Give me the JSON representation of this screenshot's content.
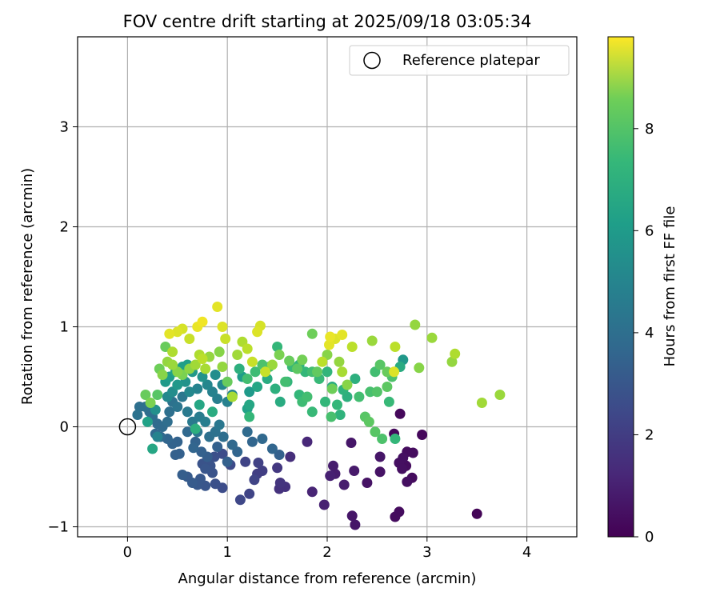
{
  "chart_data": {
    "type": "scatter",
    "title": "FOV centre drift starting at 2025/09/18 03:05:34",
    "xlabel": "Angular distance from reference (arcmin)",
    "ylabel": "Rotation from reference (arcmin)",
    "xlim": [
      -0.5,
      4.5
    ],
    "ylim": [
      -1.1,
      3.9
    ],
    "xticks": [
      0,
      1,
      2,
      3,
      4
    ],
    "xtick_labels": [
      "0",
      "1",
      "2",
      "3",
      "4"
    ],
    "yticks": [
      -1,
      0,
      1,
      2,
      3
    ],
    "ytick_labels": [
      "−1",
      "0",
      "1",
      "2",
      "3"
    ],
    "grid": true,
    "legend": {
      "placement": "top-right",
      "entries": [
        "Reference platepar"
      ]
    },
    "reference_point": {
      "x": 0,
      "y": 0,
      "marker": "open-circle"
    },
    "colorbar": {
      "label": "Hours from first FF file",
      "colormap": "viridis",
      "range": [
        0,
        9.8
      ],
      "ticks": [
        0,
        2,
        4,
        6,
        8
      ],
      "tick_labels": [
        "0",
        "2",
        "4",
        "6",
        "8"
      ]
    },
    "series": [
      {
        "points": [
          [
            2.73,
            0.13,
            0.2
          ],
          [
            2.67,
            -0.07,
            0.2
          ],
          [
            2.95,
            -0.08,
            0.2
          ],
          [
            2.8,
            -0.25,
            0.3
          ],
          [
            2.86,
            -0.26,
            0.3
          ],
          [
            2.76,
            -0.31,
            0.4
          ],
          [
            2.72,
            -0.36,
            0.4
          ],
          [
            2.79,
            -0.39,
            0.3
          ],
          [
            2.75,
            -0.42,
            0.4
          ],
          [
            2.85,
            -0.51,
            0.3
          ],
          [
            2.8,
            -0.55,
            0.4
          ],
          [
            2.72,
            -0.85,
            0.3
          ],
          [
            2.68,
            -0.9,
            0.3
          ],
          [
            3.5,
            -0.87,
            0.1
          ],
          [
            2.53,
            -0.45,
            0.5
          ],
          [
            2.53,
            -0.3,
            0.6
          ],
          [
            2.4,
            -0.56,
            0.5
          ],
          [
            2.24,
            -0.16,
            0.6
          ],
          [
            2.25,
            -0.89,
            0.6
          ],
          [
            2.28,
            -0.98,
            0.6
          ],
          [
            2.27,
            -0.44,
            0.7
          ],
          [
            2.17,
            -0.58,
            0.8
          ],
          [
            2.08,
            -0.47,
            0.8
          ],
          [
            2.03,
            -0.49,
            0.9
          ],
          [
            2.06,
            -0.39,
            0.8
          ],
          [
            1.97,
            -0.78,
            0.9
          ],
          [
            1.85,
            -0.65,
            1.0
          ],
          [
            1.8,
            -0.15,
            1.1
          ],
          [
            1.63,
            -0.3,
            1.3
          ],
          [
            1.58,
            -0.6,
            1.4
          ],
          [
            1.52,
            -0.62,
            1.4
          ],
          [
            1.53,
            -0.56,
            1.5
          ],
          [
            1.5,
            -0.41,
            1.6
          ],
          [
            1.35,
            -0.44,
            1.8
          ],
          [
            1.3,
            -0.47,
            1.8
          ],
          [
            1.31,
            -0.36,
            1.9
          ],
          [
            1.27,
            -0.53,
            2.0
          ],
          [
            1.18,
            -0.35,
            2.0
          ],
          [
            1.22,
            -0.67,
            2.0
          ],
          [
            1.13,
            -0.73,
            2.1
          ],
          [
            1.03,
            -0.38,
            2.2
          ],
          [
            0.95,
            -0.27,
            2.3
          ],
          [
            0.95,
            -0.61,
            2.3
          ],
          [
            0.88,
            -0.57,
            2.4
          ],
          [
            0.85,
            -0.46,
            2.5
          ],
          [
            0.87,
            -0.3,
            2.4
          ],
          [
            0.83,
            -0.39,
            2.5
          ],
          [
            0.78,
            -0.42,
            2.6
          ],
          [
            0.75,
            -0.37,
            2.5
          ],
          [
            0.78,
            -0.59,
            2.6
          ],
          [
            0.73,
            -0.52,
            2.7
          ],
          [
            0.7,
            -0.58,
            2.7
          ],
          [
            0.65,
            -0.56,
            2.8
          ],
          [
            0.6,
            -0.5,
            2.8
          ],
          [
            0.55,
            -0.48,
            2.9
          ],
          [
            0.52,
            -0.27,
            3.0
          ],
          [
            0.48,
            -0.28,
            3.0
          ],
          [
            0.5,
            -0.15,
            3.1
          ],
          [
            0.45,
            -0.17,
            3.1
          ],
          [
            0.4,
            -0.12,
            3.2
          ],
          [
            0.33,
            -0.1,
            3.3
          ],
          [
            0.28,
            -0.07,
            3.3
          ],
          [
            0.3,
            0.03,
            3.4
          ],
          [
            0.25,
            0.1,
            3.5
          ],
          [
            0.22,
            0.15,
            3.5
          ],
          [
            0.18,
            0.2,
            3.6
          ],
          [
            0.12,
            0.2,
            3.6
          ],
          [
            0.1,
            0.12,
            3.7
          ],
          [
            0.35,
            0.0,
            3.4
          ],
          [
            0.4,
            0.05,
            3.5
          ],
          [
            0.42,
            0.15,
            3.6
          ],
          [
            0.45,
            0.25,
            3.7
          ],
          [
            0.5,
            0.2,
            3.8
          ],
          [
            0.55,
            0.3,
            3.9
          ],
          [
            0.6,
            0.15,
            4.0
          ],
          [
            0.65,
            0.05,
            4.0
          ],
          [
            0.7,
            -0.05,
            3.8
          ],
          [
            0.72,
            0.1,
            4.1
          ],
          [
            0.78,
            0.05,
            4.2
          ],
          [
            0.82,
            -0.1,
            3.6
          ],
          [
            0.88,
            -0.05,
            3.7
          ],
          [
            0.92,
            0.02,
            3.9
          ],
          [
            0.96,
            -0.1,
            3.5
          ],
          [
            1.0,
            -0.35,
            3.0
          ],
          [
            0.66,
            -0.21,
            3.2
          ],
          [
            0.6,
            -0.05,
            3.3
          ],
          [
            0.68,
            -0.15,
            3.1
          ],
          [
            0.74,
            -0.25,
            3.0
          ],
          [
            0.8,
            -0.3,
            2.9
          ],
          [
            0.9,
            -0.2,
            3.0
          ],
          [
            1.05,
            -0.18,
            3.3
          ],
          [
            1.1,
            -0.25,
            3.2
          ],
          [
            1.2,
            -0.05,
            3.4
          ],
          [
            1.25,
            -0.15,
            3.2
          ],
          [
            1.35,
            -0.12,
            3.3
          ],
          [
            1.45,
            -0.22,
            3.2
          ],
          [
            1.52,
            -0.28,
            3.0
          ],
          [
            0.55,
            0.6,
            5.5
          ],
          [
            0.48,
            0.55,
            5.6
          ],
          [
            0.42,
            0.5,
            5.4
          ],
          [
            0.38,
            0.45,
            5.3
          ],
          [
            0.5,
            0.42,
            5.2
          ],
          [
            0.58,
            0.45,
            5.0
          ],
          [
            0.45,
            0.35,
            4.8
          ],
          [
            0.4,
            0.3,
            4.6
          ],
          [
            0.62,
            0.35,
            4.6
          ],
          [
            0.7,
            0.38,
            4.4
          ],
          [
            0.8,
            0.42,
            4.5
          ],
          [
            0.85,
            0.35,
            4.3
          ],
          [
            0.9,
            0.28,
            4.2
          ],
          [
            1.0,
            0.25,
            4.3
          ],
          [
            1.05,
            0.32,
            4.5
          ],
          [
            0.95,
            0.42,
            4.6
          ],
          [
            0.88,
            0.52,
            4.8
          ],
          [
            0.75,
            0.5,
            5.0
          ],
          [
            0.65,
            0.55,
            5.2
          ],
          [
            0.6,
            0.62,
            5.5
          ],
          [
            1.15,
            0.5,
            5.4
          ],
          [
            1.22,
            0.35,
            5.3
          ],
          [
            1.2,
            0.18,
            5.6
          ],
          [
            1.22,
            0.22,
            5.8
          ],
          [
            1.3,
            0.4,
            5.8
          ],
          [
            1.4,
            0.48,
            6.0
          ],
          [
            1.48,
            0.38,
            6.2
          ],
          [
            1.53,
            0.25,
            6.0
          ],
          [
            1.6,
            0.45,
            6.4
          ],
          [
            1.72,
            0.32,
            6.5
          ],
          [
            1.75,
            0.25,
            6.7
          ],
          [
            1.8,
            0.3,
            6.8
          ],
          [
            1.85,
            0.15,
            6.6
          ],
          [
            1.98,
            0.25,
            6.5
          ],
          [
            2.04,
            0.1,
            6.9
          ],
          [
            2.1,
            0.22,
            6.5
          ],
          [
            2.13,
            0.12,
            6.3
          ],
          [
            2.2,
            0.3,
            6.2
          ],
          [
            2.16,
            0.37,
            6.3
          ],
          [
            2.05,
            0.4,
            6.0
          ],
          [
            2.0,
            0.55,
            6.4
          ],
          [
            1.92,
            0.48,
            6.6
          ],
          [
            1.85,
            0.55,
            6.8
          ],
          [
            1.78,
            0.55,
            6.5
          ],
          [
            1.72,
            0.62,
            6.3
          ],
          [
            1.65,
            0.6,
            6.6
          ],
          [
            1.58,
            0.45,
            6.8
          ],
          [
            1.5,
            0.8,
            6.5
          ],
          [
            1.42,
            0.6,
            6.8
          ],
          [
            1.35,
            0.62,
            7.0
          ],
          [
            1.28,
            0.55,
            6.7
          ],
          [
            1.2,
            0.48,
            6.8
          ],
          [
            1.12,
            0.58,
            6.2
          ],
          [
            2.28,
            0.48,
            6.2
          ],
          [
            2.32,
            0.3,
            6.8
          ],
          [
            2.38,
            0.1,
            7.2
          ],
          [
            2.42,
            0.05,
            7.3
          ],
          [
            2.48,
            -0.05,
            7.2
          ],
          [
            2.55,
            -0.12,
            7.0
          ],
          [
            2.62,
            0.25,
            6.6
          ],
          [
            2.6,
            0.4,
            7.3
          ],
          [
            2.65,
            0.5,
            7.0
          ],
          [
            2.73,
            0.6,
            6.0
          ],
          [
            2.76,
            0.67,
            5.2
          ],
          [
            2.48,
            0.55,
            6.8
          ],
          [
            2.43,
            0.35,
            6.9
          ],
          [
            2.5,
            0.35,
            7.1
          ],
          [
            2.68,
            -0.12,
            6.5
          ],
          [
            0.18,
            0.32,
            7.5
          ],
          [
            0.23,
            0.24,
            7.8
          ],
          [
            0.3,
            0.32,
            7.2
          ],
          [
            0.25,
            -0.22,
            5.8
          ],
          [
            0.32,
            0.58,
            7.6
          ],
          [
            0.35,
            0.52,
            8.0
          ],
          [
            0.4,
            0.65,
            8.2
          ],
          [
            0.45,
            0.75,
            8.6
          ],
          [
            0.38,
            0.8,
            7.5
          ],
          [
            0.5,
            0.95,
            9.3
          ],
          [
            0.55,
            0.98,
            9.2
          ],
          [
            0.62,
            0.88,
            9.0
          ],
          [
            0.42,
            0.93,
            9.4
          ],
          [
            0.45,
            0.62,
            8.3
          ],
          [
            0.5,
            0.55,
            8.0
          ],
          [
            0.55,
            0.52,
            7.8
          ],
          [
            0.62,
            0.58,
            8.1
          ],
          [
            0.68,
            0.62,
            8.4
          ],
          [
            0.72,
            0.72,
            8.6
          ],
          [
            0.75,
            0.68,
            8.8
          ],
          [
            0.78,
            0.58,
            8.5
          ],
          [
            0.82,
            0.7,
            8.2
          ],
          [
            0.7,
            1.0,
            9.5
          ],
          [
            0.75,
            1.05,
            9.6
          ],
          [
            0.9,
            1.2,
            9.4
          ],
          [
            0.95,
            1.0,
            9.3
          ],
          [
            0.98,
            0.88,
            9.0
          ],
          [
            0.92,
            0.75,
            8.0
          ],
          [
            0.95,
            0.6,
            8.2
          ],
          [
            1.0,
            0.45,
            7.5
          ],
          [
            1.05,
            0.3,
            8.5
          ],
          [
            1.1,
            0.72,
            8.4
          ],
          [
            1.15,
            0.85,
            8.6
          ],
          [
            1.2,
            0.78,
            8.8
          ],
          [
            1.25,
            0.65,
            9.0
          ],
          [
            1.3,
            0.95,
            9.3
          ],
          [
            1.33,
            1.01,
            9.2
          ],
          [
            1.38,
            0.55,
            9.0
          ],
          [
            1.45,
            0.62,
            8.3
          ],
          [
            1.52,
            0.72,
            7.8
          ],
          [
            1.62,
            0.66,
            7.5
          ],
          [
            1.7,
            0.58,
            7.3
          ],
          [
            1.75,
            0.67,
            7.7
          ],
          [
            1.85,
            0.93,
            7.6
          ],
          [
            1.9,
            0.55,
            7.4
          ],
          [
            1.95,
            0.65,
            8.8
          ],
          [
            2.0,
            0.72,
            8.0
          ],
          [
            2.02,
            0.82,
            9.4
          ],
          [
            2.03,
            0.9,
            9.5
          ],
          [
            2.08,
            0.88,
            9.3
          ],
          [
            2.15,
            0.92,
            9.4
          ],
          [
            2.12,
            0.65,
            8.2
          ],
          [
            2.15,
            0.55,
            8.5
          ],
          [
            2.2,
            0.42,
            8.0
          ],
          [
            2.25,
            0.8,
            8.8
          ],
          [
            2.45,
            0.86,
            8.3
          ],
          [
            2.53,
            0.62,
            7.2
          ],
          [
            2.6,
            0.55,
            7.5
          ],
          [
            2.67,
            0.55,
            9.3
          ],
          [
            2.68,
            0.8,
            8.8
          ],
          [
            2.88,
            1.02,
            8.2
          ],
          [
            3.05,
            0.89,
            8.3
          ],
          [
            2.92,
            0.59,
            8.0
          ],
          [
            3.25,
            0.65,
            8.2
          ],
          [
            3.28,
            0.73,
            8.6
          ],
          [
            3.55,
            0.24,
            8.4
          ],
          [
            3.73,
            0.32,
            8.3
          ],
          [
            2.05,
            0.38,
            7.6
          ],
          [
            1.22,
            0.1,
            6.5
          ],
          [
            0.85,
            0.15,
            6.0
          ],
          [
            0.72,
            0.22,
            5.8
          ],
          [
            0.68,
            -0.02,
            6.2
          ],
          [
            0.2,
            0.05,
            5.6
          ],
          [
            0.28,
            0.17,
            4.9
          ],
          [
            0.3,
            -0.1,
            4.4
          ]
        ]
      }
    ]
  }
}
